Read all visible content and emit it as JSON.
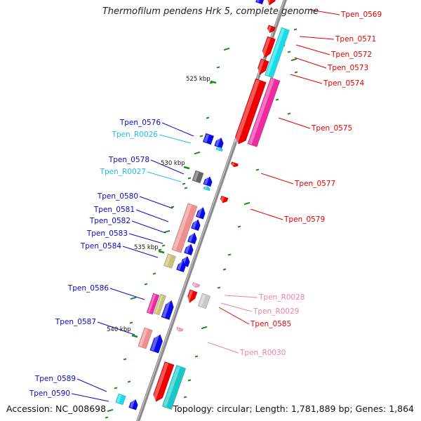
{
  "title": "Thermofilum pendens Hrk 5, complete genome",
  "footer": {
    "accession": "Accession: NC_008698",
    "topology": "Topology: circular; Length: 1,781,889 bp; Genes: 1,864"
  },
  "colors": {
    "backbone": "#8a8a8a",
    "forward_label": "#0a0ac8",
    "reverse_label": "#e00000",
    "trna_label": "#22c0e8",
    "rrna_label": "#f080b0",
    "gc_skew": "#1a8a1a"
  },
  "scale_marks": [
    "525 kbp",
    "530 kbp",
    "535 kbp",
    "540 kbp"
  ],
  "gene_labels": {
    "left": [
      "Tpen_0576",
      "Tpen_R0026",
      "Tpen_0578",
      "Tpen_R0027",
      "Tpen_0580",
      "Tpen_0581",
      "Tpen_0582",
      "Tpen_0583",
      "Tpen_0584",
      "Tpen_0586",
      "Tpen_0587",
      "Tpen_0589",
      "Tpen_0590"
    ],
    "right": [
      "Tpen_0569",
      "Tpen_0571",
      "Tpen_0572",
      "Tpen_0573",
      "Tpen_0574",
      "Tpen_0575",
      "Tpen_0577",
      "Tpen_0579",
      "Tpen_R0028",
      "Tpen_R0029",
      "Tpen_0585",
      "Tpen_R0030"
    ]
  }
}
